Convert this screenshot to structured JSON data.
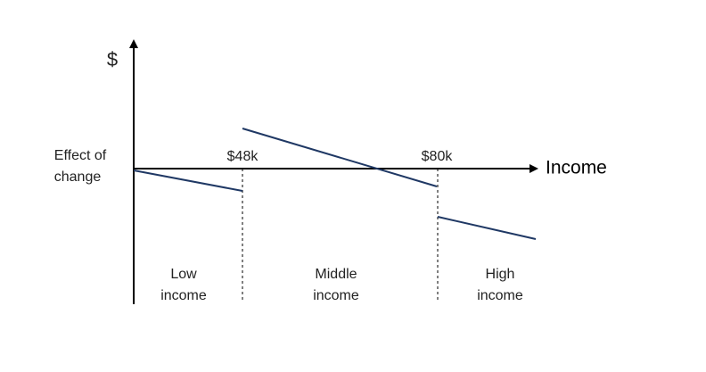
{
  "y_axis_label": "$",
  "y_axis_caption": [
    "Effect of",
    "change"
  ],
  "x_axis_label": "Income",
  "thresholds": [
    "$48k",
    "$80k"
  ],
  "regions": [
    [
      "Low",
      "income"
    ],
    [
      "Middle",
      "income"
    ],
    [
      "High",
      "income"
    ]
  ]
}
